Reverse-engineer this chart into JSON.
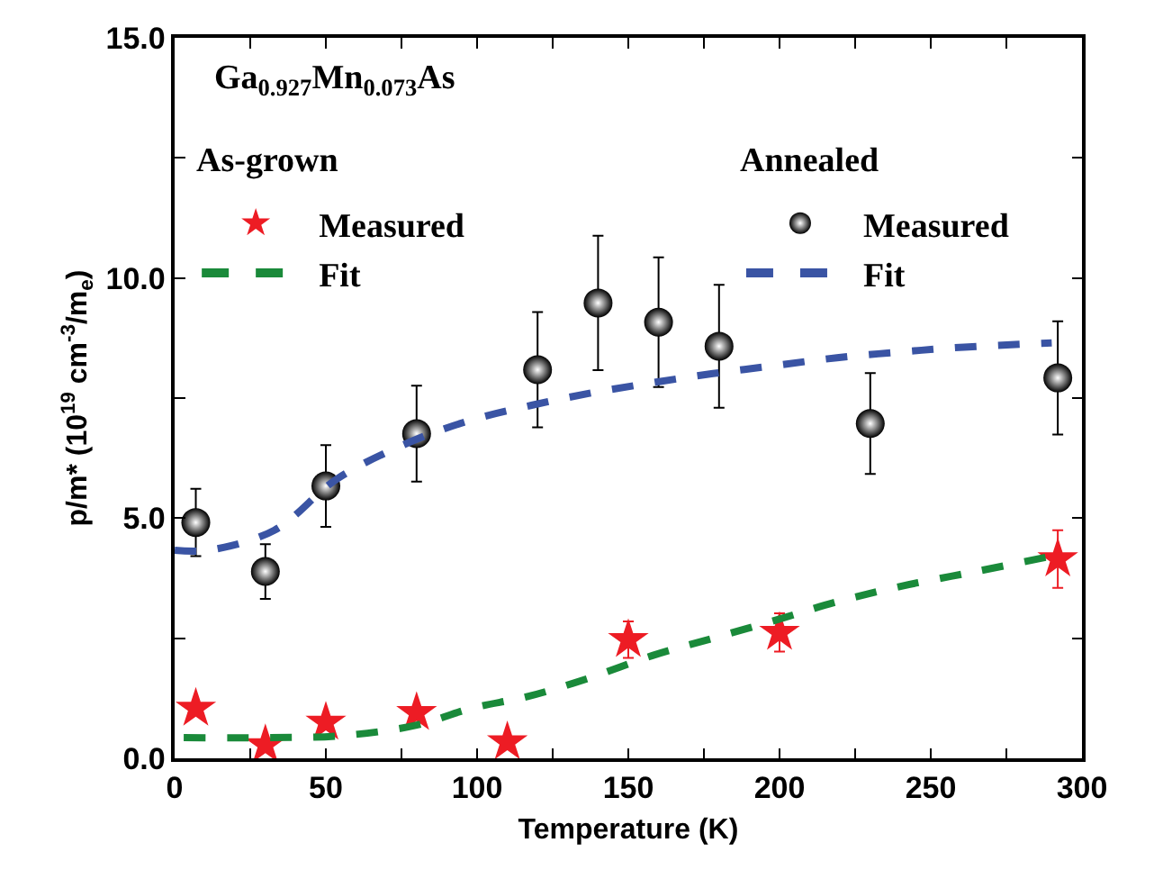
{
  "chart_data": {
    "type": "scatter",
    "xlabel": "Temperature (K)",
    "ylabel": "p/m* (10$^{19}$ cm$^{-3}$/m$_{e}$)",
    "xlim": [
      0,
      300
    ],
    "ylim": [
      0,
      15
    ],
    "xticks": [
      0,
      {
        "value": 25,
        "label": null
      },
      50,
      {
        "value": 75,
        "label": null
      },
      100,
      {
        "value": 125,
        "label": null
      },
      150,
      {
        "value": 175,
        "label": null
      },
      200,
      {
        "value": 225,
        "label": null
      },
      250,
      {
        "value": 275,
        "label": null
      },
      300
    ],
    "yticks": [
      {
        "value": 0,
        "label": "0.0"
      },
      {
        "value": 2.5,
        "label": null
      },
      {
        "value": 5,
        "label": "5.0"
      },
      {
        "value": 7.5,
        "label": null
      },
      {
        "value": 10,
        "label": "10.0"
      },
      {
        "value": 12.5,
        "label": null
      },
      {
        "value": 15,
        "label": "15.0"
      }
    ],
    "legend": "top",
    "annotations": [
      "Ga$_{0.927}$Mn$_{0.073}$As",
      "As-grown",
      "Annealed"
    ],
    "series": [
      {
        "name": "Measured",
        "marker": "star",
        "color": "#ed1c24",
        "x": [
          7,
          30,
          50,
          80,
          110,
          150,
          200,
          292
        ],
        "values": [
          1.04,
          0.28,
          0.75,
          0.95,
          0.34,
          2.47,
          2.62,
          4.15
        ],
        "errors": [
          null,
          null,
          null,
          null,
          null,
          0.38,
          0.4,
          0.6
        ]
      },
      {
        "name": "Fit",
        "type": "line",
        "line_style": "dashed",
        "color": "#1a8a3a",
        "x": [
          3,
          30,
          55,
          80,
          98,
          117,
          137,
          158,
          178,
          199,
          219,
          240,
          265,
          290
        ],
        "values": [
          0.43,
          0.43,
          0.47,
          0.69,
          1.04,
          1.29,
          1.67,
          2.14,
          2.5,
          2.88,
          3.26,
          3.58,
          3.89,
          4.21
        ]
      },
      {
        "name": "Measured",
        "marker": "circle",
        "color": "#000000",
        "x": [
          7,
          30,
          50,
          80,
          120,
          140,
          160,
          180,
          230,
          292
        ],
        "values": [
          4.91,
          3.89,
          5.67,
          6.76,
          8.09,
          9.48,
          9.08,
          8.58,
          6.97,
          7.92
        ],
        "errors": [
          0.7,
          0.57,
          0.85,
          1.0,
          1.2,
          1.4,
          1.35,
          1.28,
          1.05,
          1.18
        ]
      },
      {
        "name": "Fit",
        "type": "line",
        "line_style": "dashed",
        "color": "#3a54a4",
        "x": [
          0,
          11,
          33,
          54,
          78,
          98,
          118,
          138,
          158,
          178,
          199,
          219,
          240,
          261,
          290
        ],
        "values": [
          4.33,
          4.33,
          4.75,
          5.83,
          6.59,
          7.04,
          7.35,
          7.61,
          7.82,
          8.01,
          8.18,
          8.34,
          8.46,
          8.56,
          8.65
        ]
      }
    ]
  }
}
